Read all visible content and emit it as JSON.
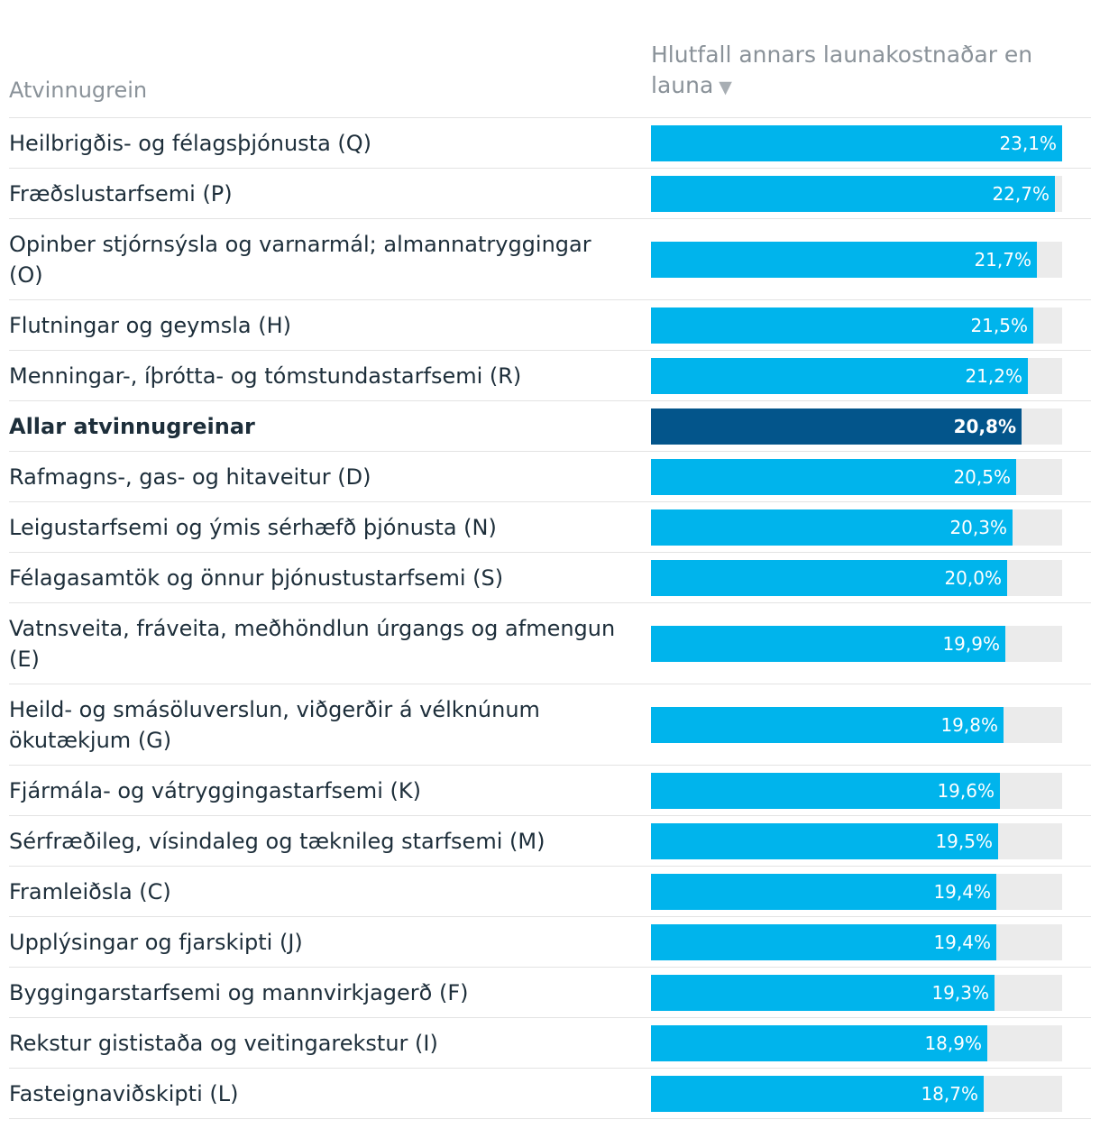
{
  "chart_data": {
    "type": "bar",
    "orientation": "horizontal",
    "column_headers": {
      "category": "Atvinnugrein",
      "value": "Hlutfall annars launakostnaðar en launa"
    },
    "sort_icon": "sort-down-triangle-icon",
    "xlim": [
      0,
      23.1
    ],
    "colors": {
      "bar": "#00b4ec",
      "highlight": "#03558b",
      "track": "#ebebeb"
    },
    "rows": [
      {
        "label": "Heilbrigðis- og félagsþjónusta (Q)",
        "value": 23.1,
        "value_label": "23,1%",
        "highlight": false
      },
      {
        "label": "Fræðslustarfsemi (P)",
        "value": 22.7,
        "value_label": "22,7%",
        "highlight": false
      },
      {
        "label": "Opinber stjórnsýsla og varnarmál; almannatryggingar (O)",
        "value": 21.7,
        "value_label": "21,7%",
        "highlight": false
      },
      {
        "label": "Flutningar og geymsla (H)",
        "value": 21.5,
        "value_label": "21,5%",
        "highlight": false
      },
      {
        "label": "Menningar-, íþrótta- og tómstundastarfsemi (R)",
        "value": 21.2,
        "value_label": "21,2%",
        "highlight": false
      },
      {
        "label": "Allar atvinnugreinar",
        "value": 20.8,
        "value_label": "20,8%",
        "highlight": true
      },
      {
        "label": "Rafmagns-, gas- og hitaveitur (D)",
        "value": 20.5,
        "value_label": "20,5%",
        "highlight": false
      },
      {
        "label": "Leigustarfsemi og ýmis sérhæfð þjónusta (N)",
        "value": 20.3,
        "value_label": "20,3%",
        "highlight": false
      },
      {
        "label": "Félagasamtök og önnur þjónustustarfsemi (S)",
        "value": 20.0,
        "value_label": "20,0%",
        "highlight": false
      },
      {
        "label": "Vatnsveita, fráveita, meðhöndlun úrgangs og afmengun (E)",
        "value": 19.9,
        "value_label": "19,9%",
        "highlight": false
      },
      {
        "label": "Heild- og smásöluverslun, viðgerðir á vélknúnum ökutækjum (G)",
        "value": 19.8,
        "value_label": "19,8%",
        "highlight": false
      },
      {
        "label": "Fjármála- og vátryggingastarfsemi (K)",
        "value": 19.6,
        "value_label": "19,6%",
        "highlight": false
      },
      {
        "label": "Sérfræðileg, vísindaleg og tæknileg starfsemi (M)",
        "value": 19.5,
        "value_label": "19,5%",
        "highlight": false
      },
      {
        "label": "Framleiðsla (C)",
        "value": 19.4,
        "value_label": "19,4%",
        "highlight": false
      },
      {
        "label": "Upplýsingar og fjarskipti (J)",
        "value": 19.4,
        "value_label": "19,4%",
        "highlight": false
      },
      {
        "label": "Byggingarstarfsemi og mannvirkjagerð (F)",
        "value": 19.3,
        "value_label": "19,3%",
        "highlight": false
      },
      {
        "label": "Rekstur gististaða og veitingarekstur (I)",
        "value": 18.9,
        "value_label": "18,9%",
        "highlight": false
      },
      {
        "label": "Fasteignaviðskipti (L)",
        "value": 18.7,
        "value_label": "18,7%",
        "highlight": false
      }
    ]
  }
}
